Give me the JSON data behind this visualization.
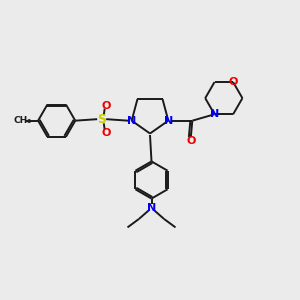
{
  "bg_color": "#ebebeb",
  "bond_color": "#1a1a1a",
  "atom_colors": {
    "N": "#0000ee",
    "O": "#ee0000",
    "S": "#cccc00"
  },
  "figsize": [
    3.0,
    3.0
  ],
  "dpi": 100
}
